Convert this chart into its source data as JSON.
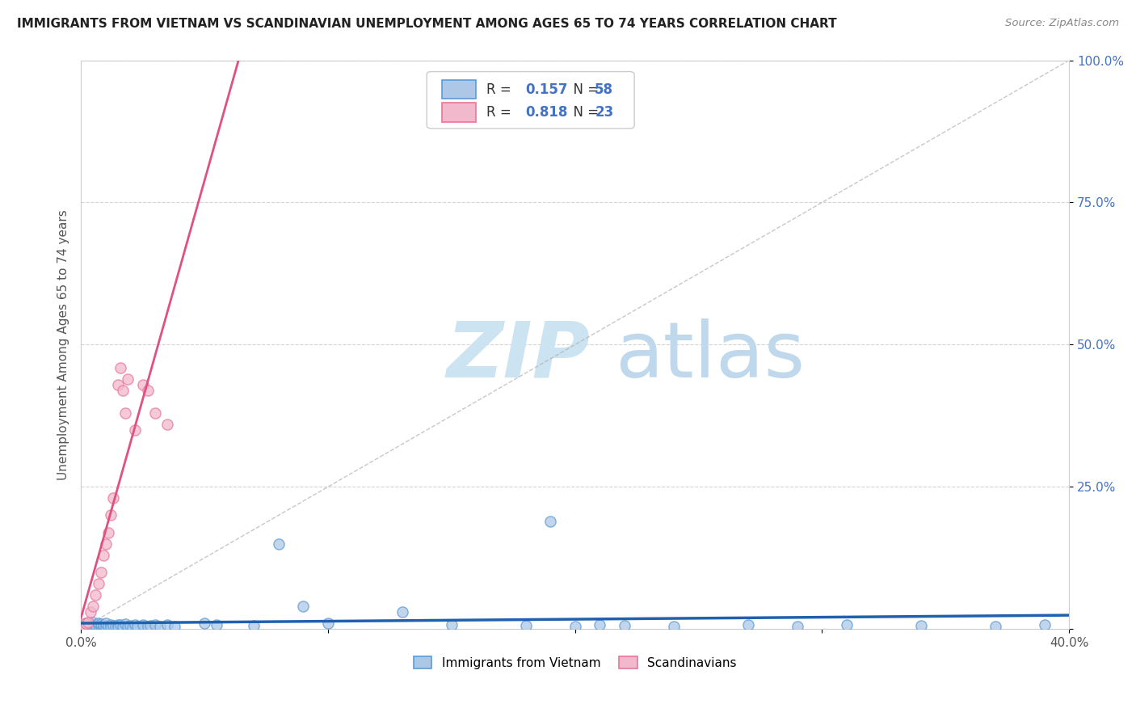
{
  "title": "IMMIGRANTS FROM VIETNAM VS SCANDINAVIAN UNEMPLOYMENT AMONG AGES 65 TO 74 YEARS CORRELATION CHART",
  "source": "Source: ZipAtlas.com",
  "ylabel": "Unemployment Among Ages 65 to 74 years",
  "xlim": [
    0.0,
    0.4
  ],
  "ylim": [
    0.0,
    1.0
  ],
  "xticks": [
    0.0,
    0.1,
    0.2,
    0.3,
    0.4
  ],
  "xticklabels": [
    "0.0%",
    "",
    "",
    "",
    "40.0%"
  ],
  "yticks": [
    0.0,
    0.25,
    0.5,
    0.75,
    1.0
  ],
  "yticklabels_right": [
    "",
    "25.0%",
    "50.0%",
    "75.0%",
    "100.0%"
  ],
  "vietnam_color": "#adc8e6",
  "vietnam_edge": "#5b9bd5",
  "scandinavian_color": "#f2b8cb",
  "scandinavian_edge": "#e8769a",
  "vietnam_R": 0.157,
  "vietnam_N": 58,
  "scandinavian_R": 0.818,
  "scandinavian_N": 23,
  "vietnam_line_color": "#2060b0",
  "scandinavian_line_color": "#e05080",
  "background_color": "#ffffff",
  "grid_color": "#c8c8c8",
  "watermark_zip_color": "#d5e8f2",
  "watermark_atlas_color": "#c8dff0",
  "title_color": "#222222",
  "source_color": "#888888",
  "ylabel_color": "#555555",
  "tick_color": "#4472c4",
  "legend_box_edge": "#cccccc",
  "viet_x": [
    0.001,
    0.002,
    0.003,
    0.004,
    0.005,
    0.005,
    0.006,
    0.006,
    0.007,
    0.007,
    0.008,
    0.008,
    0.009,
    0.009,
    0.01,
    0.01,
    0.011,
    0.012,
    0.012,
    0.013,
    0.014,
    0.015,
    0.015,
    0.016,
    0.017,
    0.018,
    0.019,
    0.02,
    0.021,
    0.022,
    0.023,
    0.025,
    0.027,
    0.028,
    0.03,
    0.032,
    0.035,
    0.038,
    0.05,
    0.055,
    0.07,
    0.08,
    0.09,
    0.1,
    0.13,
    0.15,
    0.18,
    0.19,
    0.2,
    0.21,
    0.22,
    0.24,
    0.27,
    0.29,
    0.31,
    0.34,
    0.37,
    0.39
  ],
  "viet_y": [
    0.005,
    0.01,
    0.003,
    0.008,
    0.005,
    0.012,
    0.003,
    0.008,
    0.006,
    0.01,
    0.004,
    0.009,
    0.003,
    0.007,
    0.005,
    0.01,
    0.004,
    0.008,
    0.003,
    0.006,
    0.004,
    0.008,
    0.003,
    0.007,
    0.005,
    0.009,
    0.004,
    0.006,
    0.003,
    0.008,
    0.005,
    0.007,
    0.004,
    0.006,
    0.008,
    0.005,
    0.007,
    0.004,
    0.01,
    0.008,
    0.006,
    0.15,
    0.04,
    0.01,
    0.03,
    0.008,
    0.006,
    0.19,
    0.005,
    0.008,
    0.006,
    0.004,
    0.007,
    0.005,
    0.008,
    0.006,
    0.005,
    0.008
  ],
  "scan_x": [
    0.001,
    0.002,
    0.003,
    0.004,
    0.005,
    0.006,
    0.007,
    0.008,
    0.009,
    0.01,
    0.011,
    0.012,
    0.013,
    0.015,
    0.016,
    0.017,
    0.018,
    0.019,
    0.022,
    0.025,
    0.027,
    0.03,
    0.035
  ],
  "scan_y": [
    0.005,
    0.01,
    0.012,
    0.03,
    0.04,
    0.06,
    0.08,
    0.1,
    0.13,
    0.15,
    0.17,
    0.2,
    0.23,
    0.43,
    0.46,
    0.42,
    0.38,
    0.44,
    0.35,
    0.43,
    0.42,
    0.38,
    0.36
  ]
}
